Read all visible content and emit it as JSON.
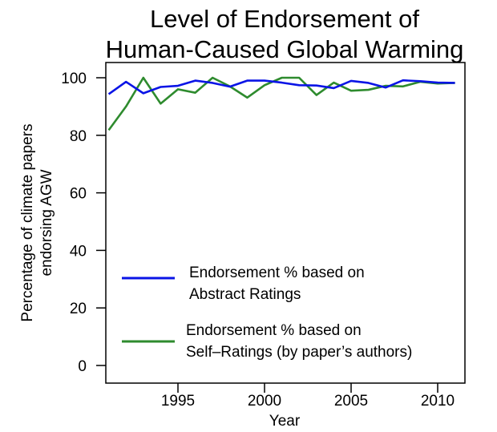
{
  "chart_data": {
    "type": "line",
    "title": [
      "Level of Endorsement of",
      "Human-Caused Global Warming"
    ],
    "xlabel": "Year",
    "ylabel": [
      "Percentage of climate papers",
      "endorsing AGW"
    ],
    "xlim": [
      1990.8,
      2011.6
    ],
    "ylim": [
      -6,
      106
    ],
    "xticks": [
      1995,
      2000,
      2005,
      2010
    ],
    "yticks": [
      0,
      20,
      40,
      60,
      80,
      100
    ],
    "x": [
      1991,
      1992,
      1993,
      1994,
      1995,
      1996,
      1997,
      1998,
      1999,
      2000,
      2001,
      2002,
      2003,
      2004,
      2005,
      2006,
      2007,
      2008,
      2009,
      2010,
      2011
    ],
    "series": [
      {
        "name": "Endorsement % based on Abstract Ratings",
        "legend": [
          "Endorsement % based on",
          "Abstract Ratings"
        ],
        "color": "#0a14e6",
        "values": [
          94.3,
          98.6,
          94.6,
          96.8,
          97.2,
          99.0,
          98.2,
          96.9,
          99.0,
          99.0,
          98.3,
          97.4,
          97.3,
          96.4,
          98.9,
          98.2,
          96.6,
          99.1,
          98.8,
          98.3,
          98.2
        ]
      },
      {
        "name": "Endorsement % based on Self-Ratings (by paper's authors)",
        "legend": [
          "Endorsement % based on",
          "Self–Ratings (by paper’s authors)"
        ],
        "color": "#2e8b2e",
        "values": [
          81.8,
          90.0,
          100,
          91.0,
          96.0,
          94.8,
          100,
          97.0,
          93.1,
          97.4,
          100,
          100,
          94.0,
          98.3,
          95.5,
          95.8,
          97.2,
          97.0,
          98.6,
          98.0,
          98.2
        ]
      }
    ],
    "grid": false,
    "legend_position": "bottom-left"
  }
}
